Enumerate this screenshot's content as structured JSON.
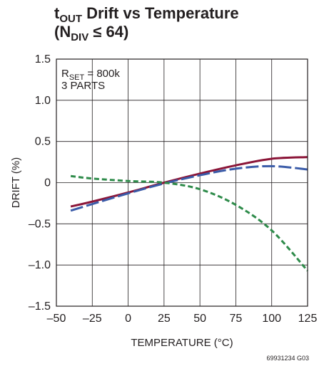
{
  "chart_data": {
    "type": "line",
    "title_line1_main": "t",
    "title_line1_sub": "OUT",
    "title_line1_rest": " Drift vs Temperature",
    "title_line2_open": "(N",
    "title_line2_sub": "DIV",
    "title_line2_rest": " ≤ 64)",
    "xlabel": "TEMPERATURE (°C)",
    "ylabel": "DRIFT (%)",
    "xlim": [
      -50,
      125
    ],
    "ylim": [
      -1.5,
      1.5
    ],
    "x_ticks": [
      "–50",
      "–25",
      "0",
      "25",
      "50",
      "75",
      "100",
      "125"
    ],
    "x_tick_values": [
      -50,
      -25,
      0,
      25,
      50,
      75,
      100,
      125
    ],
    "y_ticks": [
      "1.5",
      "1.0",
      "0.5",
      "0",
      "–0.5",
      "–1.0",
      "–1.5"
    ],
    "y_tick_values": [
      1.5,
      1.0,
      0.5,
      0,
      -0.5,
      -1.0,
      -1.5
    ],
    "grid": true,
    "annotation_rset_main": "R",
    "annotation_rset_sub": "SET",
    "annotation_rset_rest": " = 800k",
    "annotation_parts": "3 PARTS",
    "figure_code": "69931234 G03",
    "series": [
      {
        "color": "#8b1538",
        "dash": "solid",
        "x": [
          -40,
          -25,
          0,
          25,
          50,
          75,
          100,
          125
        ],
        "y": [
          -0.29,
          -0.23,
          -0.12,
          0.0,
          0.11,
          0.21,
          0.29,
          0.31
        ]
      },
      {
        "color": "#3a5ba8",
        "dash": "long-dash",
        "x": [
          -40,
          -25,
          0,
          25,
          50,
          75,
          100,
          125
        ],
        "y": [
          -0.34,
          -0.26,
          -0.13,
          -0.01,
          0.09,
          0.17,
          0.2,
          0.16
        ]
      },
      {
        "color": "#2e8b4a",
        "dash": "short-dash",
        "x": [
          -40,
          -25,
          0,
          25,
          50,
          75,
          100,
          125
        ],
        "y": [
          0.08,
          0.05,
          0.02,
          0.0,
          -0.08,
          -0.27,
          -0.58,
          -1.07
        ]
      }
    ]
  }
}
